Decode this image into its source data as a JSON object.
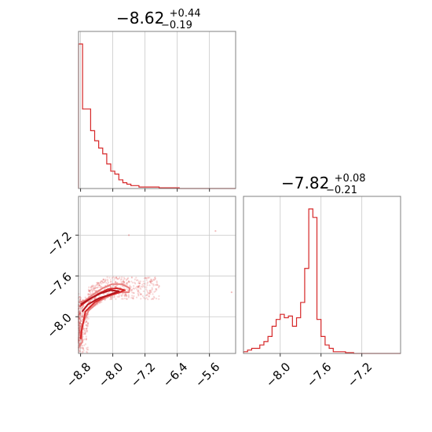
{
  "chart_data": [
    {
      "type": "histogram",
      "panel": "top-left",
      "title": {
        "median": "−8.62",
        "plus": "+0.44",
        "minus": "−0.19"
      },
      "xlim": [
        -8.85,
        -4.95
      ],
      "bin_width": 0.1,
      "bins_start": -8.85,
      "values": [
        100,
        55,
        55,
        40,
        33,
        28,
        24,
        17,
        12,
        10,
        6,
        4,
        3,
        2,
        2,
        1,
        1,
        1,
        1,
        1,
        0.5,
        0.5,
        0.5,
        0.5,
        0.5,
        0,
        0,
        0,
        0,
        0,
        0,
        0,
        0,
        0,
        0,
        0,
        0,
        0,
        0
      ],
      "color": "#d62728",
      "grid": true
    },
    {
      "type": "scatter",
      "panel": "bottom-left",
      "xlim": [
        -8.85,
        -4.95
      ],
      "ylim": [
        -8.36,
        -6.82
      ],
      "xticks": [
        "−8.8",
        "−8.0",
        "−7.2",
        "−6.4",
        "−5.6"
      ],
      "xtick_values": [
        -8.8,
        -8.0,
        -7.2,
        -6.4,
        -5.6
      ],
      "yticks": [
        "−8.0",
        "−7.6",
        "−7.2"
      ],
      "ytick_values": [
        -8.0,
        -7.6,
        -7.2
      ],
      "contours": [
        {
          "level": "outer",
          "points": [
            [
              -8.85,
              -7.86
            ],
            [
              -8.68,
              -7.84
            ],
            [
              -8.48,
              -7.78
            ],
            [
              -8.25,
              -7.72
            ],
            [
              -8.02,
              -7.68
            ],
            [
              -7.78,
              -7.68
            ],
            [
              -7.58,
              -7.72
            ],
            [
              -7.6,
              -7.76
            ],
            [
              -7.85,
              -7.76
            ],
            [
              -8.1,
              -7.8
            ],
            [
              -8.35,
              -7.85
            ],
            [
              -8.6,
              -7.94
            ],
            [
              -8.78,
              -8.1
            ],
            [
              -8.76,
              -8.25
            ],
            [
              -8.85,
              -8.3
            ]
          ]
        },
        {
          "level": "middle",
          "points": [
            [
              -8.82,
              -7.9
            ],
            [
              -8.62,
              -7.84
            ],
            [
              -8.38,
              -7.78
            ],
            [
              -8.12,
              -7.73
            ],
            [
              -7.9,
              -7.72
            ],
            [
              -7.7,
              -7.74
            ],
            [
              -7.9,
              -7.77
            ],
            [
              -8.18,
              -7.8
            ],
            [
              -8.45,
              -7.86
            ],
            [
              -8.68,
              -7.95
            ],
            [
              -8.78,
              -8.15
            ],
            [
              -8.8,
              -8.22
            ]
          ]
        },
        {
          "level": "inner",
          "points": [
            [
              -8.8,
              -7.88
            ],
            [
              -8.55,
              -7.82
            ],
            [
              -8.3,
              -7.77
            ],
            [
              -8.05,
              -7.74
            ],
            [
              -7.85,
              -7.75
            ],
            [
              -8.05,
              -7.78
            ],
            [
              -8.35,
              -7.82
            ],
            [
              -8.62,
              -7.88
            ],
            [
              -8.76,
              -7.95
            ]
          ]
        }
      ],
      "color": "#d62728",
      "grid": true
    },
    {
      "type": "histogram",
      "panel": "bottom-right",
      "title": {
        "median": "−7.82",
        "plus": "+0.08",
        "minus": "−0.21"
      },
      "xlim": [
        -8.36,
        -6.82
      ],
      "xticks": [
        "−8.0",
        "−7.6",
        "−7.2"
      ],
      "xtick_values": [
        -8.0,
        -7.6,
        -7.2
      ],
      "bin_width": 0.04,
      "bins_start": -8.36,
      "values": [
        1,
        2,
        3,
        3,
        5,
        7,
        10,
        16,
        20,
        23,
        21,
        22,
        16,
        21,
        30,
        50,
        85,
        80,
        20,
        10,
        5,
        3,
        1,
        1,
        1,
        0.5,
        0.5,
        0,
        0,
        0,
        0,
        0,
        0,
        0,
        0,
        0,
        0,
        0,
        0
      ],
      "color": "#d62728",
      "grid": true
    }
  ]
}
